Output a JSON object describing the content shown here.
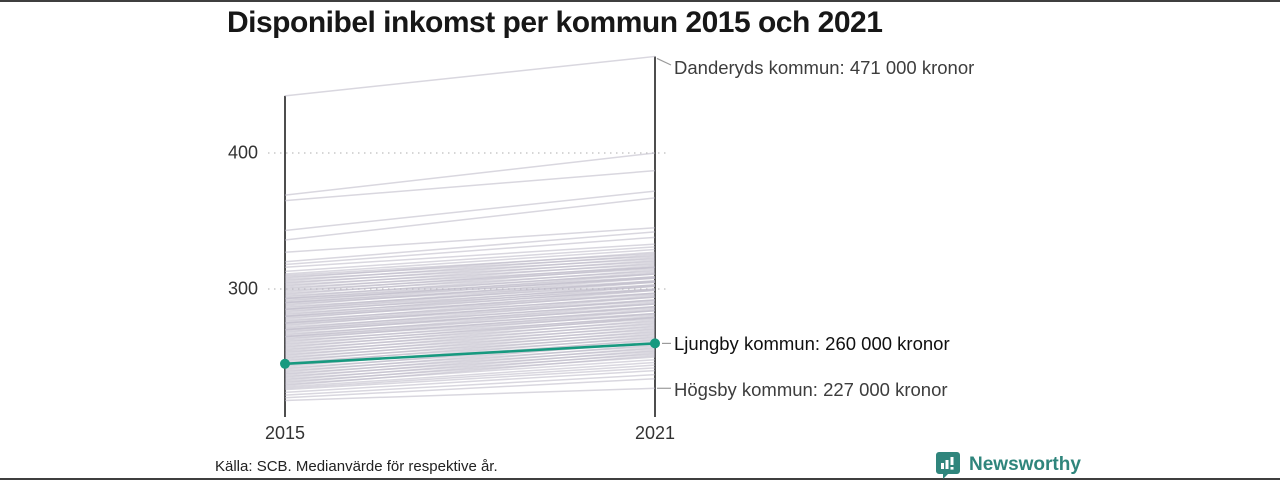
{
  "title": "Disponibel inkomst per kommun 2015 och 2021",
  "source_note": "Källa: SCB. Medianvärde för respektive år.",
  "branding": {
    "name": "Newsworthy",
    "icon": "bar-chart-speech-bubble-icon",
    "color": "#2f857c"
  },
  "axes": {
    "y_ticks": {
      "t400": "400",
      "t300": "300"
    },
    "x_ticks": {
      "x2015": "2015",
      "x2021": "2021"
    }
  },
  "annotations": {
    "top": "Danderyds kommun: 471 000 kronor",
    "highlight": "Ljungby kommun: 260 000 kronor",
    "bottom": "Högsby kommun: 227 000 kronor"
  },
  "chart_data": {
    "type": "line",
    "subtype": "slope",
    "title": "Disponibel inkomst per kommun 2015 och 2021",
    "x": [
      "2015",
      "2021"
    ],
    "ylabel": "",
    "unit": "tusen kronor (1000 kronor)",
    "y_axis": {
      "ticks": [
        400,
        300
      ],
      "displayed_range": [
        218,
        471
      ],
      "grid": "dotted"
    },
    "named_series": [
      {
        "name": "Danderyds kommun",
        "values": [
          442,
          471
        ]
      },
      {
        "name": "Ljungby kommun",
        "values": [
          245,
          260
        ],
        "highlight": true
      },
      {
        "name": "Högsby kommun",
        "values": [
          218,
          227
        ]
      }
    ],
    "highlight_color": "#17997f",
    "background_line_color": "#b9b6c5",
    "axis_color": "#222222",
    "grid_color": "#c9c9c9",
    "background_series": [
      [
        442,
        471
      ],
      [
        369,
        400
      ],
      [
        365,
        387
      ],
      [
        343,
        372
      ],
      [
        336,
        367
      ],
      [
        327,
        345
      ],
      [
        320,
        342
      ],
      [
        318,
        338
      ],
      [
        316,
        333
      ],
      [
        313,
        331
      ],
      [
        311,
        329
      ],
      [
        310,
        326
      ],
      [
        309,
        324
      ],
      [
        308,
        327
      ],
      [
        307,
        322
      ],
      [
        306,
        325
      ],
      [
        305,
        320
      ],
      [
        304,
        323
      ],
      [
        303,
        318
      ],
      [
        302,
        321
      ],
      [
        301,
        316
      ],
      [
        300,
        319
      ],
      [
        299,
        315
      ],
      [
        298,
        317
      ],
      [
        297,
        313
      ],
      [
        296,
        316
      ],
      [
        295,
        311
      ],
      [
        294,
        314
      ],
      [
        293,
        309
      ],
      [
        293,
        312
      ],
      [
        292,
        308
      ],
      [
        291,
        311
      ],
      [
        290,
        306
      ],
      [
        290,
        309
      ],
      [
        289,
        305
      ],
      [
        288,
        308
      ],
      [
        287,
        303
      ],
      [
        286,
        306
      ],
      [
        285,
        302
      ],
      [
        285,
        305
      ],
      [
        284,
        300
      ],
      [
        283,
        303
      ],
      [
        282,
        299
      ],
      [
        281,
        302
      ],
      [
        280,
        297
      ],
      [
        280,
        300
      ],
      [
        279,
        296
      ],
      [
        278,
        299
      ],
      [
        277,
        294
      ],
      [
        276,
        297
      ],
      [
        275,
        292
      ],
      [
        275,
        295
      ],
      [
        274,
        291
      ],
      [
        273,
        294
      ],
      [
        272,
        289
      ],
      [
        271,
        292
      ],
      [
        270,
        287
      ],
      [
        270,
        290
      ],
      [
        269,
        286
      ],
      [
        268,
        289
      ],
      [
        267,
        284
      ],
      [
        266,
        287
      ],
      [
        265,
        282
      ],
      [
        265,
        285
      ],
      [
        264,
        281
      ],
      [
        263,
        284
      ],
      [
        262,
        279
      ],
      [
        261,
        282
      ],
      [
        260,
        278
      ],
      [
        259,
        280
      ],
      [
        258,
        276
      ],
      [
        257,
        279
      ],
      [
        256,
        274
      ],
      [
        255,
        277
      ],
      [
        254,
        272
      ],
      [
        253,
        275
      ],
      [
        252,
        270
      ],
      [
        251,
        273
      ],
      [
        250,
        268
      ],
      [
        249,
        271
      ],
      [
        248,
        266
      ],
      [
        247,
        269
      ],
      [
        246,
        264
      ],
      [
        245,
        267
      ],
      [
        244,
        262
      ],
      [
        243,
        265
      ],
      [
        242,
        260
      ],
      [
        241,
        263
      ],
      [
        240,
        258
      ],
      [
        239,
        261
      ],
      [
        238,
        256
      ],
      [
        237,
        259
      ],
      [
        236,
        254
      ],
      [
        235,
        257
      ],
      [
        234,
        252
      ],
      [
        233,
        255
      ],
      [
        232,
        250
      ],
      [
        231,
        253
      ],
      [
        230,
        248
      ],
      [
        229,
        251
      ],
      [
        228,
        246
      ],
      [
        227,
        244
      ],
      [
        226,
        242
      ],
      [
        224,
        240
      ],
      [
        222,
        237
      ],
      [
        220,
        234
      ],
      [
        218,
        227
      ]
    ]
  }
}
